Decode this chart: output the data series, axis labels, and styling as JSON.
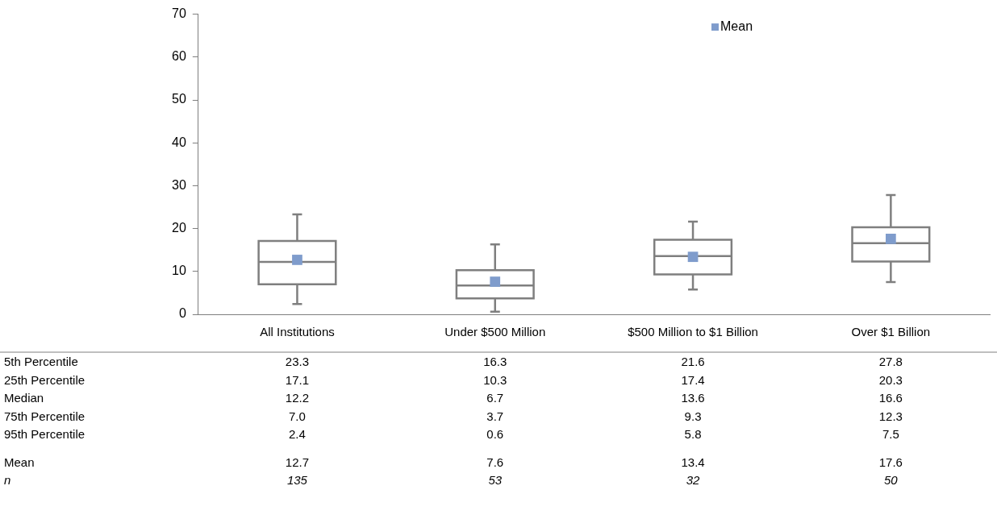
{
  "chart_data": {
    "type": "box",
    "categories": [
      "All Institutions",
      "Under $500 Million",
      "$500 Million to $1 Billion",
      "Over $1 Billion"
    ],
    "boxes": [
      {
        "low": 2.4,
        "q1": 7.0,
        "median": 12.2,
        "q3": 17.1,
        "high": 23.3
      },
      {
        "low": 0.6,
        "q1": 3.7,
        "median": 6.7,
        "q3": 10.3,
        "high": 16.3
      },
      {
        "low": 5.8,
        "q1": 9.3,
        "median": 13.6,
        "q3": 17.4,
        "high": 21.6
      },
      {
        "low": 7.5,
        "q1": 12.3,
        "median": 16.6,
        "q3": 20.3,
        "high": 27.8
      }
    ],
    "color": "#7f7f7f",
    "series": [
      {
        "name": "Mean",
        "type": "scatter",
        "x": [
          "All Institutions",
          "Under $500 Million",
          "$500 Million to $1 Billion",
          "Over $1 Billion"
        ],
        "values": [
          12.7,
          7.6,
          13.4,
          17.6
        ],
        "color": "#7f9ccc"
      }
    ],
    "ylim": [
      0,
      70
    ],
    "yticks": [
      0,
      10,
      20,
      30,
      40,
      50,
      60,
      70
    ],
    "grid": false,
    "legend": "top right",
    "marker": "square",
    "data_labels": true,
    "annotations": [
      "5th Percentile",
      "23.3",
      "16.3",
      "21.6",
      "27.8",
      "25th Percentile",
      "17.1",
      "10.3",
      "17.4",
      "20.3",
      "Median",
      "12.2",
      "6.7",
      "13.6",
      "16.6",
      "75th Percentile",
      "7.0",
      "3.7",
      "9.3",
      "12.3",
      "95th Percentile",
      "2.4",
      "0.6",
      "5.8",
      "7.5",
      "n",
      "135",
      "53",
      "32",
      "50"
    ]
  }
}
